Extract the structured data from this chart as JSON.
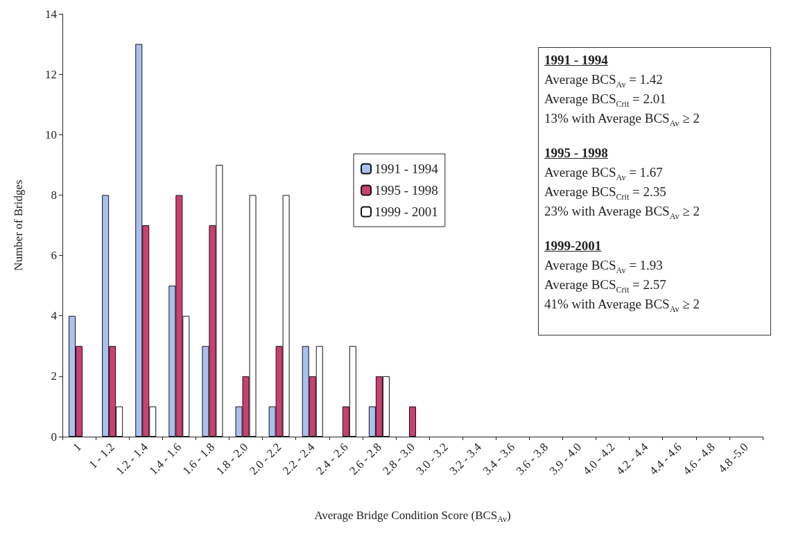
{
  "chart_data": {
    "type": "bar",
    "xlabel": "Average Bridge Condition Score (BCS$_{Av}$)",
    "ylabel": "Number of Bridges",
    "categories": [
      "1",
      "1 - 1.2",
      "1.2 - 1.4",
      "1.4 - 1.6",
      "1.6 - 1.8",
      "1.8 - 2.0",
      "2.0 - 2.2",
      "2.2 - 2.4",
      "2.4 - 2.6",
      "2.6 - 2.8",
      "2.8 - 3.0",
      "3.0 - 3.2",
      "3.2 - 3.4",
      "3.4 - 3.6",
      "3.6 - 3.8",
      "3.9 - 4.0",
      "4.0 - 4.2",
      "4.2 - 4.4",
      "4.4 - 4.6",
      "4.6 - 4.8",
      "4.8 -5.0"
    ],
    "series": [
      {
        "name": "1991 - 1994",
        "color": "#a9c1ee",
        "values": [
          4,
          8,
          13,
          5,
          3,
          1,
          1,
          3,
          0,
          1,
          0,
          0,
          0,
          0,
          0,
          0,
          0,
          0,
          0,
          0,
          0
        ]
      },
      {
        "name": "1995 - 1998",
        "color": "#cc3f73",
        "values": [
          3,
          3,
          7,
          8,
          7,
          2,
          3,
          2,
          1,
          2,
          1,
          0,
          0,
          0,
          0,
          0,
          0,
          0,
          0,
          0,
          0
        ]
      },
      {
        "name": "1999 - 2001",
        "color": "#ffffff",
        "values": [
          0,
          1,
          1,
          4,
          9,
          8,
          8,
          3,
          3,
          2,
          0,
          0,
          0,
          0,
          0,
          0,
          0,
          0,
          0,
          0,
          0
        ]
      }
    ],
    "ylim": [
      0,
      14
    ],
    "yticks": [
      0,
      2,
      4,
      6,
      8,
      10,
      12,
      14
    ],
    "grid": false,
    "legend": "center",
    "annotations": [
      "1991 - 1994",
      "Average BCS$_{Av}$ = 1.42",
      "Average BCS$_{Crit}$ = 2.01",
      "13% with Average BCS$_{Av}$ ≥ 2",
      "1995 - 1998",
      "Average BCS$_{Av}$ = 1.67",
      "Average BCS$_{Crit}$ = 2.35",
      "23% with Average BCS$_{Av}$ ≥ 2",
      "1999-2001",
      "Average BCS$_{Av}$ = 1.93",
      "Average BCS$_{Crit}$ = 2.57",
      "41% with Average BCS$_{Av}$ ≥ 2"
    ]
  }
}
